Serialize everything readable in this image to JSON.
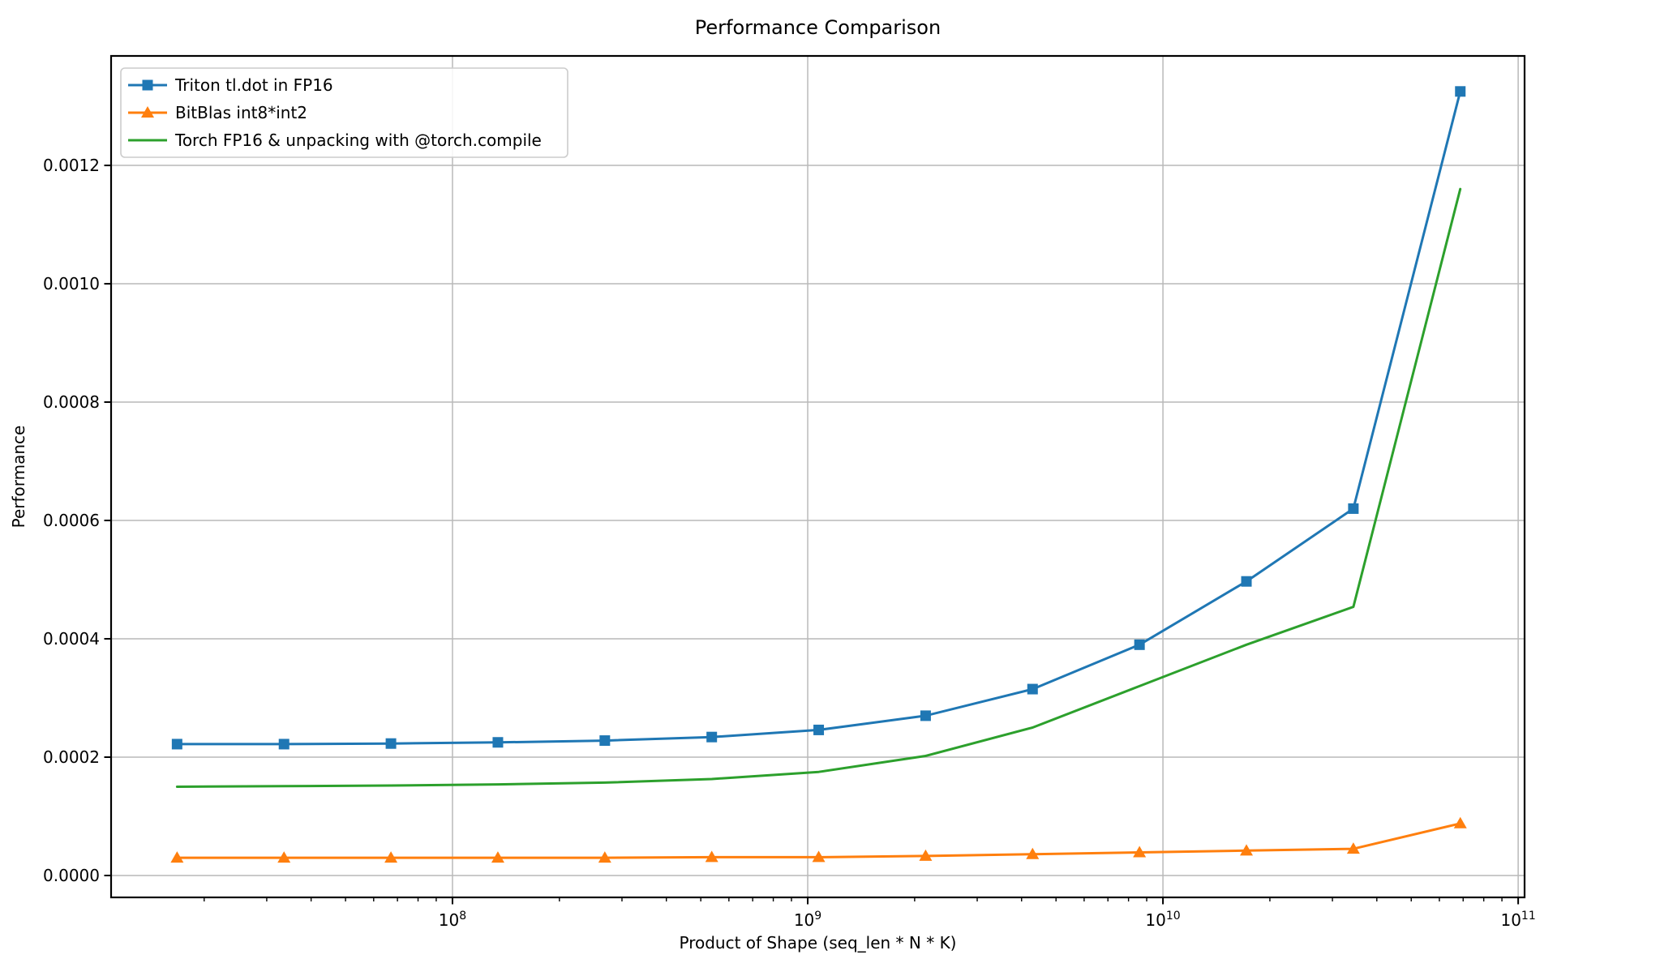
{
  "figure": {
    "background": "#ffffff"
  },
  "chart_data": {
    "type": "line",
    "title": "Performance Comparison",
    "xlabel": "Product of Shape (seq_len * N * K)",
    "ylabel": "Performance",
    "x_scale": "log10",
    "grid": true,
    "legend_position": "upper-left",
    "colors": {
      "grid": "#b9b9b9",
      "spine": "#000000",
      "tick": "#000000",
      "legend_border": "#cccccc",
      "legend_background": "#ffffff"
    },
    "x_axis": {
      "range_log10": [
        7.039,
        11.018
      ],
      "major_tick_base": "10",
      "major_tick_exponents": [
        8,
        9,
        10,
        11
      ],
      "minor_ticks_per_decade": [
        2,
        3,
        4,
        5,
        6,
        7,
        8,
        9
      ]
    },
    "y_axis": {
      "range": [
        -3.7e-05,
        0.001385
      ],
      "ticks": [
        {
          "value": 0.0,
          "label": "0.0000"
        },
        {
          "value": 0.0002,
          "label": "0.0002"
        },
        {
          "value": 0.0004,
          "label": "0.0004"
        },
        {
          "value": 0.0006,
          "label": "0.0006"
        },
        {
          "value": 0.0008,
          "label": "0.0008"
        },
        {
          "value": 0.001,
          "label": "0.0010"
        },
        {
          "value": 0.0012,
          "label": "0.0012"
        }
      ]
    },
    "x": [
      16777216,
      33554432,
      67108864,
      134217728,
      268435456,
      536870912,
      1073741824,
      2147483648,
      4294967296,
      8589934592,
      17179869184,
      34359738368,
      68719476736
    ],
    "series": [
      {
        "name": "Triton tl.dot in FP16",
        "color": "#1f77b4",
        "marker": "square",
        "values": [
          0.000222,
          0.000222,
          0.000223,
          0.000225,
          0.000228,
          0.000234,
          0.000246,
          0.00027,
          0.000315,
          0.00039,
          0.000497,
          0.00062,
          0.001325
        ]
      },
      {
        "name": "BitBlas int8*int2",
        "color": "#ff7f0e",
        "marker": "triangle",
        "values": [
          3e-05,
          3e-05,
          3e-05,
          3e-05,
          3e-05,
          3.1e-05,
          3.1e-05,
          3.3e-05,
          3.6e-05,
          3.9e-05,
          4.2e-05,
          4.5e-05,
          8.8e-05
        ]
      },
      {
        "name": "Torch FP16 & unpacking with @torch.compile",
        "color": "#2ca02c",
        "marker": "none",
        "values": [
          0.00015,
          0.000151,
          0.000152,
          0.000154,
          0.000157,
          0.000163,
          0.000175,
          0.000202,
          0.00025,
          0.00032,
          0.00039,
          0.000454,
          0.00116
        ]
      }
    ]
  }
}
